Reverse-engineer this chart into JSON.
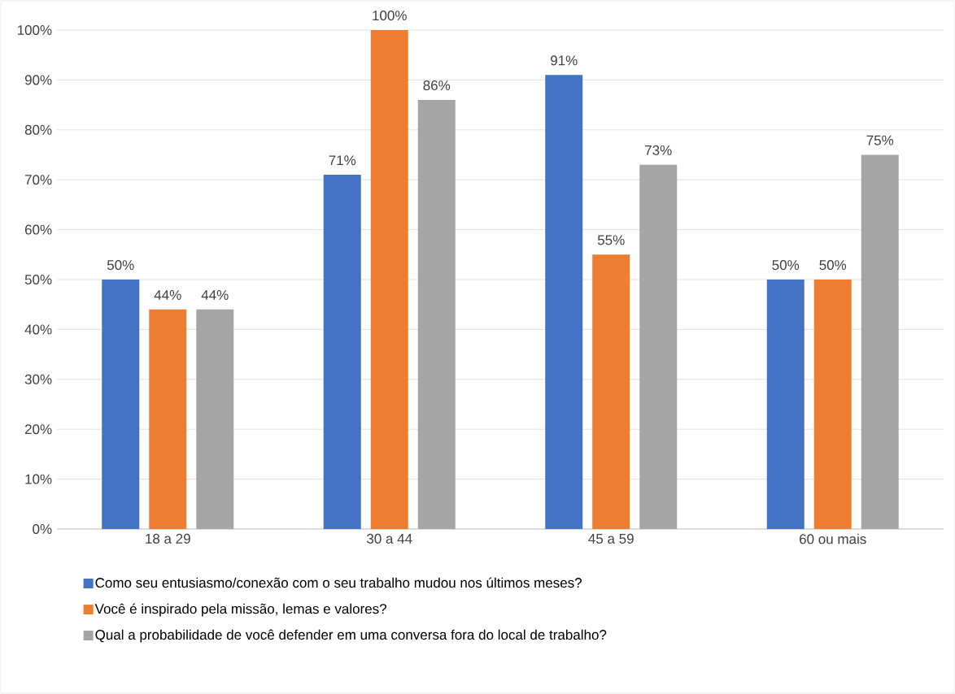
{
  "chart_data": {
    "type": "bar",
    "categories": [
      "18 a 29",
      "30 a 44",
      "45 a 59",
      "60 ou mais"
    ],
    "series": [
      {
        "name": "Como seu entusiasmo/conexão com o seu trabalho mudou nos últimos meses?",
        "color": "#4472c4",
        "values": [
          50,
          71,
          91,
          50
        ],
        "value_labels": [
          "50%",
          "71%",
          "91%",
          "50%"
        ]
      },
      {
        "name": "Você é inspirado pela missão, lemas e valores?",
        "color": "#ed7d31",
        "values": [
          44,
          100,
          55,
          50
        ],
        "value_labels": [
          "44%",
          "100%",
          "55%",
          "50%"
        ]
      },
      {
        "name": "Qual a probabilidade de você defender em uma conversa fora do local de trabalho?",
        "color": "#a5a5a5",
        "values": [
          44,
          86,
          73,
          75
        ],
        "value_labels": [
          "44%",
          "86%",
          "73%",
          "75%"
        ]
      }
    ],
    "ylim": [
      0,
      100
    ],
    "yticks": [
      {
        "value": 0,
        "label": "0%"
      },
      {
        "value": 10,
        "label": "10%"
      },
      {
        "value": 20,
        "label": "20%"
      },
      {
        "value": 30,
        "label": "30%"
      },
      {
        "value": 40,
        "label": "40%"
      },
      {
        "value": 50,
        "label": "50%"
      },
      {
        "value": 60,
        "label": "60%"
      },
      {
        "value": 70,
        "label": "70%"
      },
      {
        "value": 80,
        "label": "80%"
      },
      {
        "value": 90,
        "label": "90%"
      },
      {
        "value": 100,
        "label": "100%"
      }
    ],
    "grid": "y",
    "legend": "bottom"
  }
}
